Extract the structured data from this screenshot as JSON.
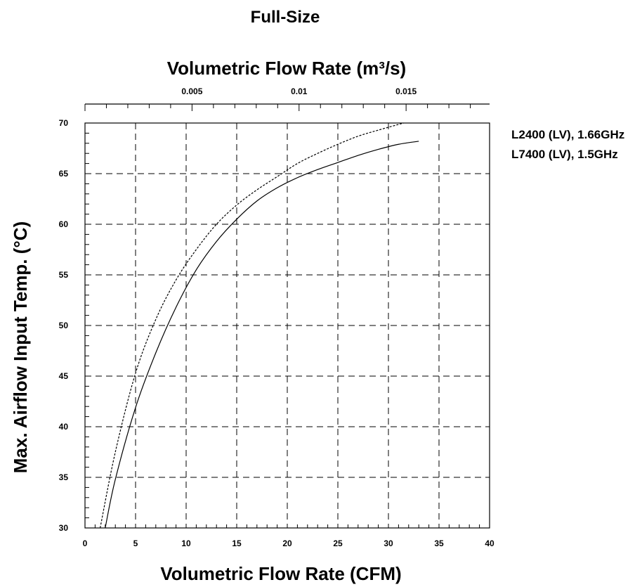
{
  "chart_data": {
    "type": "line",
    "title": "Full-Size",
    "xlabel": "Volumetric Flow Rate (CFM)",
    "x2label": "Volumetric Flow Rate (m³/s)",
    "ylabel": "Max. Airflow Input Temp. (°C)",
    "xlim": [
      0,
      40
    ],
    "ylim": [
      30,
      70
    ],
    "x2lim": [
      0,
      0.0189
    ],
    "x_ticks": [
      "0",
      "5",
      "10",
      "15",
      "20",
      "25",
      "30",
      "35",
      "40"
    ],
    "y_ticks": [
      "30",
      "35",
      "40",
      "45",
      "50",
      "55",
      "60",
      "65",
      "70"
    ],
    "x2_ticks": [
      "0.005",
      "0.01",
      "0.015"
    ],
    "x2_tick_values": [
      0.005,
      0.01,
      0.015
    ],
    "grid": true,
    "legend_position": "right",
    "series": [
      {
        "name": "L2400 (LV), 1.66GHz",
        "line_style": "dashed",
        "x": [
          1.5,
          3,
          5,
          7,
          9,
          11,
          13,
          15,
          17,
          19,
          21,
          23,
          25,
          27,
          29,
          31.5
        ],
        "y": [
          30,
          37.5,
          45.3,
          50.6,
          54.5,
          57.5,
          60,
          61.9,
          63.4,
          64.7,
          66,
          67,
          67.9,
          68.7,
          69.3,
          70
        ]
      },
      {
        "name": "L7400 (LV), 1.5GHz",
        "line_style": "solid",
        "x": [
          2,
          3,
          5,
          7,
          9,
          11,
          13,
          15,
          17,
          19,
          21,
          23,
          25,
          27,
          29,
          31,
          33
        ],
        "y": [
          30,
          34.8,
          41.9,
          47.3,
          51.8,
          55.5,
          58.3,
          60.5,
          62.3,
          63.6,
          64.6,
          65.4,
          66.1,
          66.8,
          67.4,
          67.9,
          68.2
        ]
      }
    ]
  }
}
